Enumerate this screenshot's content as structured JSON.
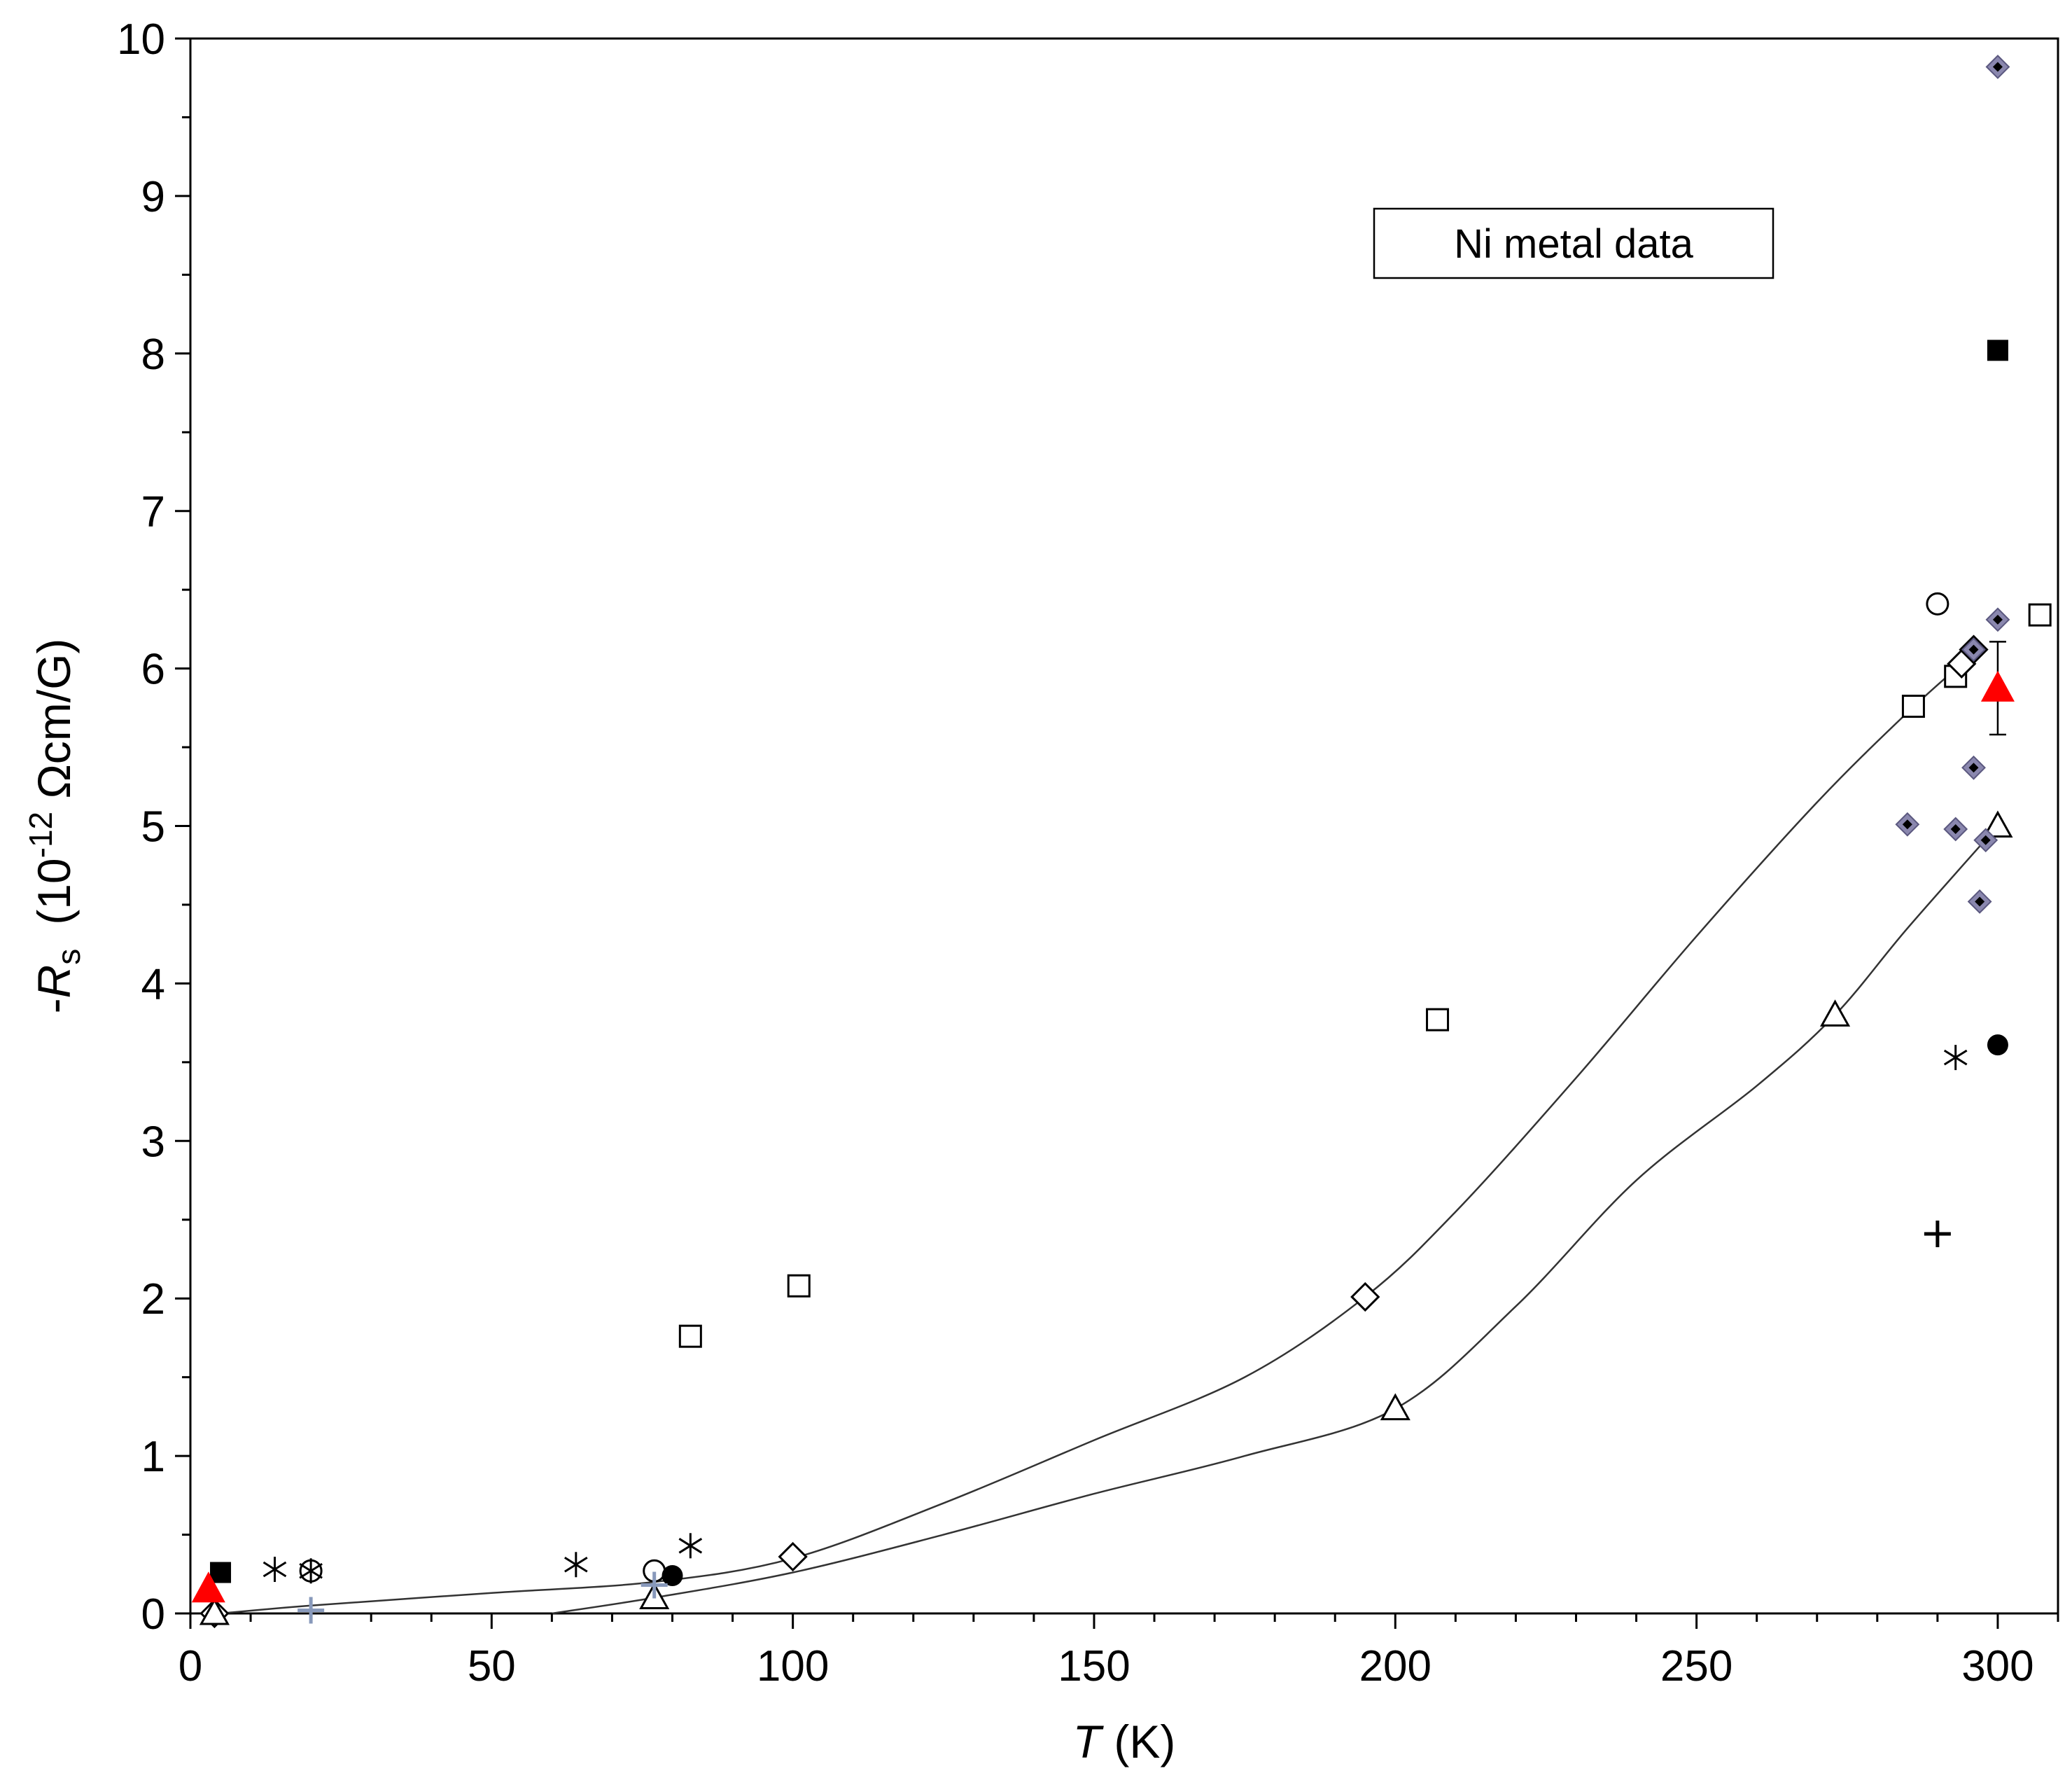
{
  "chart_data": {
    "type": "scatter",
    "legend_box": "Ni metal data",
    "xlabel": {
      "var": "T",
      "unit": " (K)"
    },
    "ylabel": {
      "prefix": "-",
      "var": "R",
      "sub": "s",
      "open": "(10",
      "exp": "-12",
      "unit": " Ωcm/G)"
    },
    "xlim": [
      0,
      310
    ],
    "ylim": [
      0,
      10
    ],
    "xticks": [
      0,
      50,
      100,
      150,
      200,
      250,
      300
    ],
    "yticks": [
      0,
      1,
      2,
      3,
      4,
      5,
      6,
      7,
      8,
      9,
      10
    ],
    "grid": false,
    "series": [
      {
        "marker": "open-square",
        "color": "#000000",
        "points": [
          [
            83,
            1.76
          ],
          [
            101,
            2.08
          ],
          [
            207,
            3.77
          ],
          [
            286,
            5.76
          ],
          [
            293,
            5.95
          ],
          [
            307,
            6.34
          ]
        ]
      },
      {
        "marker": "open-diamond",
        "color": "#000000",
        "points": [
          [
            4,
            0.0
          ],
          [
            100,
            0.36
          ],
          [
            195,
            2.01
          ],
          [
            294,
            6.03
          ],
          [
            296,
            6.12
          ]
        ]
      },
      {
        "marker": "open-triangle",
        "color": "#000000",
        "points": [
          [
            4,
            0.0
          ],
          [
            77,
            0.1
          ],
          [
            200,
            1.3
          ],
          [
            273,
            3.8
          ],
          [
            300,
            5.0
          ]
        ]
      },
      {
        "marker": "open-circle",
        "color": "#000000",
        "points": [
          [
            20,
            0.27
          ],
          [
            77,
            0.27
          ],
          [
            290,
            6.41
          ]
        ]
      },
      {
        "marker": "asterisk",
        "color": "#000000",
        "points": [
          [
            14,
            0.28
          ],
          [
            20,
            0.27
          ],
          [
            64,
            0.31
          ],
          [
            83,
            0.43
          ],
          [
            293,
            3.53
          ]
        ]
      },
      {
        "marker": "filled-square",
        "color": "#000000",
        "points": [
          [
            5,
            0.26
          ],
          [
            300,
            8.02
          ]
        ]
      },
      {
        "marker": "filled-circle",
        "color": "#000000",
        "points": [
          [
            80,
            0.24
          ],
          [
            300,
            3.61
          ]
        ]
      },
      {
        "marker": "filled-triangle",
        "color": "#ff0000",
        "points": [
          [
            3,
            0.15
          ],
          [
            300,
            5.87
          ]
        ],
        "error_bars": [
          {
            "x": 300,
            "low": 5.58,
            "high": 6.17
          }
        ]
      },
      {
        "marker": "diamond-star",
        "color": "#000000",
        "points": [
          [
            300,
            9.82
          ],
          [
            300,
            6.31
          ],
          [
            296,
            6.12
          ],
          [
            296,
            5.37
          ],
          [
            285,
            5.01
          ],
          [
            293,
            4.98
          ],
          [
            298,
            4.91
          ],
          [
            297,
            4.52
          ]
        ]
      },
      {
        "marker": "plus",
        "color": "#8899bb",
        "points": [
          [
            20,
            0.02
          ],
          [
            77,
            0.18
          ]
        ]
      },
      {
        "marker": "plus",
        "color": "#000000",
        "points": [
          [
            290,
            2.41
          ]
        ]
      }
    ],
    "fit_curves": [
      {
        "points": [
          [
            5,
            0.0
          ],
          [
            20,
            0.05
          ],
          [
            50,
            0.13
          ],
          [
            77,
            0.2
          ],
          [
            100,
            0.35
          ],
          [
            125,
            0.7
          ],
          [
            150,
            1.1
          ],
          [
            175,
            1.5
          ],
          [
            195,
            2.01
          ],
          [
            210,
            2.55
          ],
          [
            230,
            3.4
          ],
          [
            250,
            4.3
          ],
          [
            270,
            5.15
          ],
          [
            285,
            5.72
          ],
          [
            294,
            6.03
          ]
        ]
      },
      {
        "points": [
          [
            60,
            0.0
          ],
          [
            77,
            0.1
          ],
          [
            100,
            0.26
          ],
          [
            125,
            0.5
          ],
          [
            150,
            0.76
          ],
          [
            175,
            1.0
          ],
          [
            200,
            1.3
          ],
          [
            220,
            1.95
          ],
          [
            240,
            2.75
          ],
          [
            260,
            3.35
          ],
          [
            273,
            3.8
          ],
          [
            285,
            4.35
          ],
          [
            300,
            5.0
          ]
        ]
      }
    ]
  }
}
